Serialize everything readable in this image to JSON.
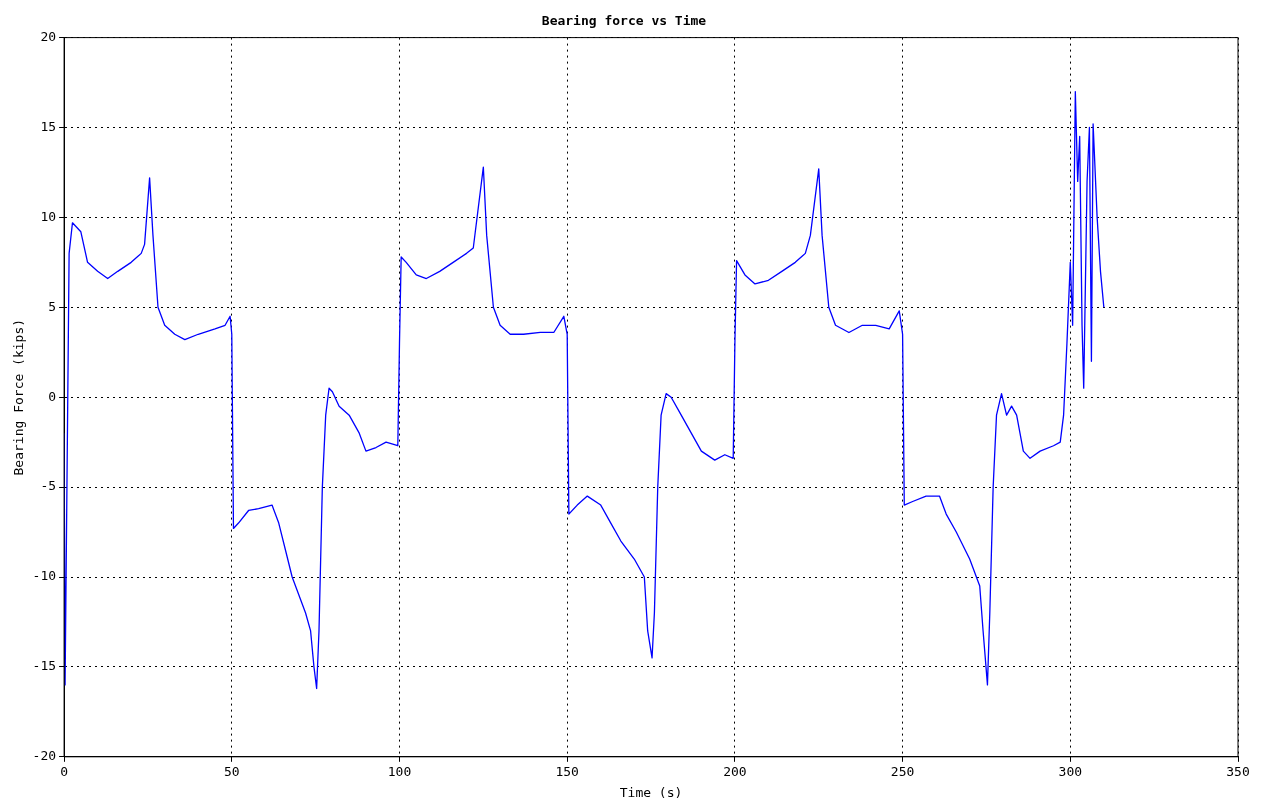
{
  "chart_data": {
    "type": "line",
    "title": "Bearing force vs Time",
    "xlabel": "Time (s)",
    "ylabel": "Bearing Force (kips)",
    "xlim": [
      0,
      350
    ],
    "xticks": [
      0,
      50,
      100,
      150,
      200,
      250,
      300,
      350
    ],
    "ylim": [
      -20,
      20
    ],
    "yticks": [
      -20,
      -15,
      -10,
      -5,
      0,
      5,
      10,
      15,
      20
    ],
    "grid": true,
    "line_style": "solid",
    "marker": "none",
    "series": [
      {
        "color": "#0000ff",
        "x": [
          0,
          0.3,
          1.5,
          2.5,
          5,
          7,
          10,
          13,
          16,
          20,
          23,
          24,
          25.5,
          26.5,
          28,
          30,
          33,
          36,
          40,
          45,
          48,
          49.5,
          50,
          50.5,
          52,
          55,
          58,
          62,
          64,
          66,
          68,
          70,
          72,
          73.5,
          74.5,
          75.3,
          76,
          77,
          78,
          79,
          80,
          82,
          85,
          88,
          90,
          93,
          96,
          99.5,
          100,
          100.5,
          102,
          105,
          108,
          112,
          116,
          120,
          122,
          125,
          126,
          128,
          130,
          133,
          137,
          142,
          146,
          149,
          150,
          150.5,
          153,
          156,
          160,
          163,
          166,
          170,
          173,
          174,
          175.3,
          176,
          177,
          178,
          179.5,
          181,
          184,
          187,
          190,
          194,
          197,
          199.5,
          200,
          200.5,
          203,
          206,
          210,
          214,
          218,
          221,
          222.5,
          225,
          226,
          228,
          230,
          234,
          238,
          242,
          246,
          249,
          250,
          250.5,
          253,
          257,
          261,
          263,
          266,
          270,
          273,
          274,
          275.3,
          276,
          277,
          278,
          279.5,
          281,
          282.5,
          284,
          285,
          286,
          288,
          291,
          295,
          297,
          298,
          299,
          300,
          300.7,
          301.5,
          302.2,
          302.8,
          303.5,
          304,
          305,
          305.7,
          306.3,
          306.8,
          308,
          309,
          310
        ],
        "values": [
          -2,
          -16,
          8,
          9.7,
          9.2,
          7.5,
          7,
          6.6,
          7,
          7.5,
          8,
          8.5,
          12.2,
          9,
          5,
          4,
          3.5,
          3.2,
          3.5,
          3.8,
          4,
          4.5,
          3.5,
          -7.3,
          -7,
          -6.3,
          -6.2,
          -6,
          -7,
          -8.5,
          -10,
          -11,
          -12,
          -13,
          -15,
          -16.2,
          -13,
          -5,
          -1,
          0.5,
          0.3,
          -0.5,
          -1,
          -2,
          -3,
          -2.8,
          -2.5,
          -2.7,
          3,
          7.8,
          7.5,
          6.8,
          6.6,
          7,
          7.5,
          8,
          8.3,
          12.8,
          9,
          5,
          4,
          3.5,
          3.5,
          3.6,
          3.6,
          4.5,
          3.5,
          -6.5,
          -6,
          -5.5,
          -6,
          -7,
          -8,
          -9,
          -10,
          -13,
          -14.5,
          -12,
          -5,
          -1,
          0.2,
          0,
          -1,
          -2,
          -3,
          -3.5,
          -3.2,
          -3.4,
          3,
          7.6,
          6.8,
          6.3,
          6.5,
          7,
          7.5,
          8,
          9,
          12.7,
          9,
          5,
          4,
          3.6,
          4,
          4,
          3.8,
          4.8,
          3.5,
          -6,
          -5.8,
          -5.5,
          -5.5,
          -6.5,
          -7.5,
          -9,
          -10.5,
          -13,
          -16,
          -12,
          -5,
          -1,
          0.2,
          -1,
          -0.5,
          -1,
          -2,
          -3,
          -3.4,
          -3,
          -2.7,
          -2.5,
          -1,
          3,
          7.5,
          4,
          17,
          12,
          14.5,
          4,
          0.5,
          12,
          15,
          2,
          15.2,
          10,
          7,
          5
        ]
      }
    ]
  }
}
